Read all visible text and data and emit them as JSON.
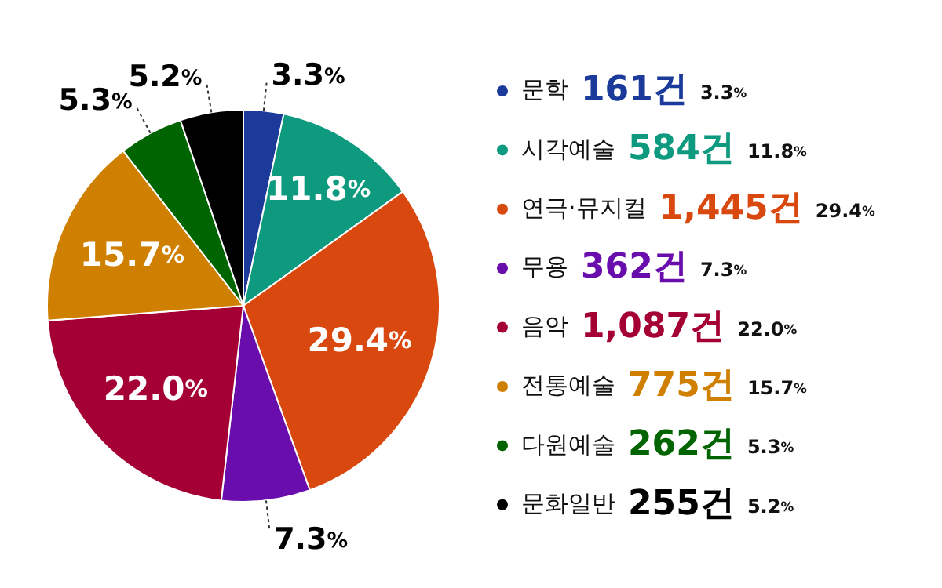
{
  "chart_data": {
    "type": "pie",
    "categories": [
      "문학",
      "시각예술",
      "연극·뮤지컬",
      "무용",
      "음악",
      "전통예술",
      "다원예술",
      "문화일반"
    ],
    "values": [
      3.3,
      11.8,
      29.4,
      7.3,
      22.0,
      15.7,
      5.3,
      5.2
    ],
    "value_labels": [
      "3.3%",
      "11.8%",
      "29.4%",
      "7.3%",
      "22.0%",
      "15.7%",
      "5.3%",
      "5.2%"
    ],
    "colors": [
      "#1b3a9a",
      "#0e9a7f",
      "#d9480f",
      "#6a0dad",
      "#a50034",
      "#d08000",
      "#006400",
      "#000000"
    ],
    "annotations": [
      "161건",
      "584건",
      "1,445건",
      "362건",
      "1,087건",
      "775건",
      "262건",
      "255건"
    ],
    "legend": "right"
  }
}
